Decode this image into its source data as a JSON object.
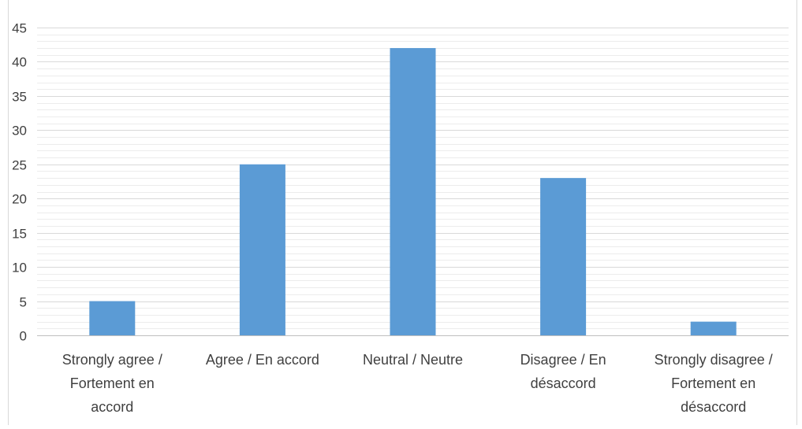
{
  "chart_data": {
    "type": "bar",
    "categories": [
      [
        "Strongly agree /",
        "Fortement en",
        "accord"
      ],
      [
        "Agree / En accord"
      ],
      [
        "Neutral / Neutre"
      ],
      [
        "Disagree / En",
        "désaccord"
      ],
      [
        "Strongly disagree /",
        "Fortement en",
        "désaccord"
      ]
    ],
    "values": [
      5,
      25,
      42,
      23,
      2
    ],
    "ylim": [
      0,
      45
    ],
    "yticks": [
      0,
      5,
      10,
      15,
      20,
      25,
      30,
      35,
      40,
      45
    ],
    "minor_grid_step": 1,
    "grid": true,
    "legend": "none",
    "title": "",
    "xlabel": "",
    "ylabel": "",
    "colors": {
      "bar": "#5b9bd5",
      "grid": "#d9d9d9",
      "minor_grid": "#ececec",
      "axis": "#bfbfbf",
      "text": "#404040",
      "border": "#d9d9d9"
    }
  }
}
